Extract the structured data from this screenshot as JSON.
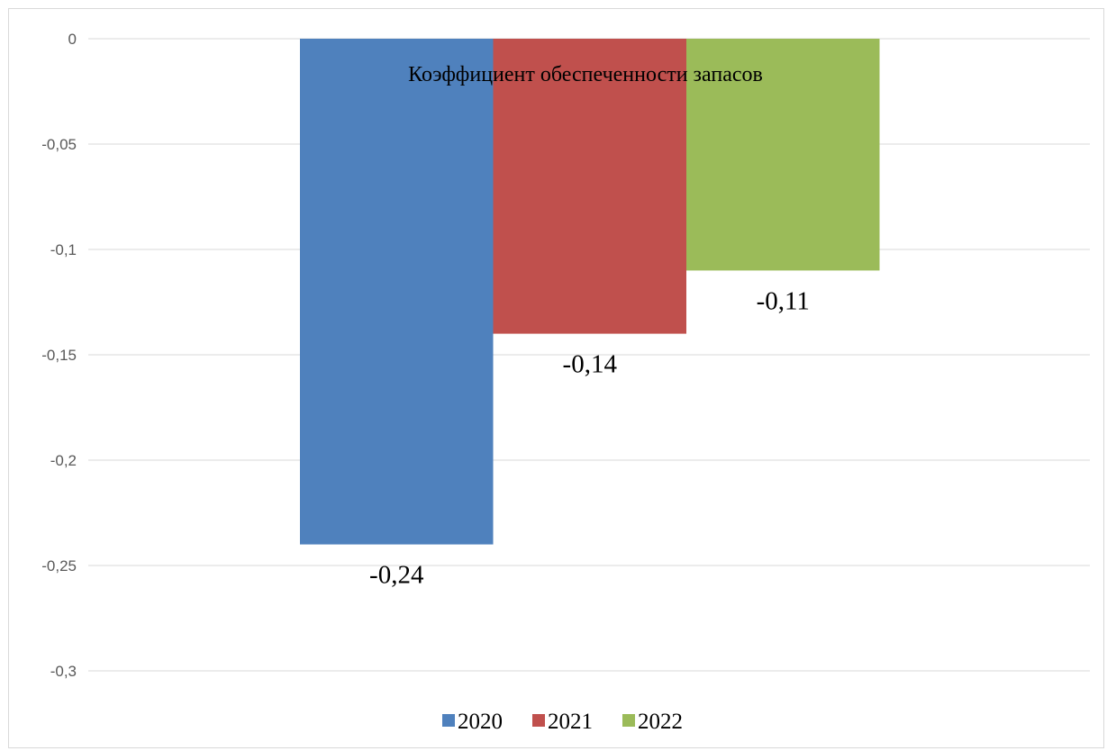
{
  "chart_data": {
    "type": "bar",
    "title": "Коэффициент обеспеченности запасов",
    "xlabel": "",
    "ylabel": "",
    "ylim": [
      -0.3,
      0
    ],
    "yticks": [
      0,
      -0.05,
      -0.1,
      -0.15,
      -0.2,
      -0.25,
      -0.3
    ],
    "ytick_labels": [
      "0",
      "-0,05",
      "-0,1",
      "-0,15",
      "-0,2",
      "-0,25",
      "-0,3"
    ],
    "grid": true,
    "legend_position": "bottom",
    "series": [
      {
        "name": "2020",
        "values": [
          -0.24
        ],
        "label": "-0,24",
        "color": "#4f81bd"
      },
      {
        "name": "2021",
        "values": [
          -0.14
        ],
        "label": "-0,14",
        "color": "#c0504d"
      },
      {
        "name": "2022",
        "values": [
          -0.11
        ],
        "label": "-0,11",
        "color": "#9bbb59"
      }
    ]
  }
}
